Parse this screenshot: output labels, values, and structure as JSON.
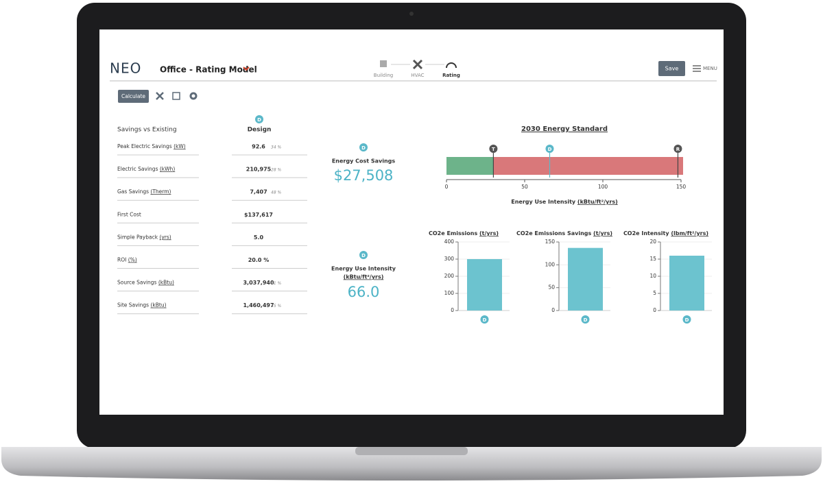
{
  "header": {
    "logo": "NEO",
    "title": "Office - Rating Model",
    "steps": [
      "Building",
      "HVAC",
      "Rating"
    ],
    "save": "Save",
    "menu": "MENU"
  },
  "toolbar": {
    "calculate": "Calculate"
  },
  "savings": {
    "title": "Savings vs Existing",
    "column_badge": "D",
    "column": "Design",
    "rows": [
      {
        "label": "Peak Electric Savings",
        "unit": "(kW)",
        "value": "92.6",
        "pct": "34 %"
      },
      {
        "label": "Electric Savings",
        "unit": "(kWh)",
        "value": "210,975",
        "pct": "28 %"
      },
      {
        "label": "Gas Savings",
        "unit": "(Therm)",
        "value": "7,407",
        "pct": "48 %"
      },
      {
        "label": "First Cost",
        "value": "$137,617"
      },
      {
        "label": "Simple Payback",
        "unit": "(yrs)",
        "value": "5.0"
      },
      {
        "label": "ROI",
        "unit": "(%)",
        "value": "20.0 %"
      },
      {
        "label": "Source Savings",
        "unit": "(kBtu)",
        "value": "3,037,940",
        "pct": "31 %"
      },
      {
        "label": "Site Savings",
        "unit": "(kBtu)",
        "value": "1,460,497",
        "pct": "35 %"
      }
    ]
  },
  "cost": {
    "badge": "D",
    "label": "Energy Cost Savings",
    "value": "$27,508"
  },
  "eui": {
    "badge": "D",
    "label": "Energy Use Intensity",
    "unit": "(kBtu/ft²/yrs)",
    "value": "66.0"
  },
  "standard": {
    "title": "2030 Energy Standard",
    "xlim": [
      0,
      150
    ],
    "xticks": [
      0,
      50,
      100,
      150
    ],
    "markers": [
      {
        "label": "T",
        "value": 30
      },
      {
        "label": "D",
        "value": 66
      },
      {
        "label": "R",
        "value": 148
      }
    ],
    "axis_label": "Energy Use Intensity",
    "axis_unit": "(kBtu/ft²/yrs)"
  },
  "charts": [
    {
      "type": "bar",
      "title": "CO2e Emissions",
      "unit": "(t/yrs)",
      "ylim": [
        0,
        400
      ],
      "yticks": [
        0,
        100,
        200,
        300,
        400
      ],
      "categories": [
        "D"
      ],
      "values": [
        300
      ],
      "color": "#6cc3cf"
    },
    {
      "type": "bar",
      "title": "CO2e Emissions Savings",
      "unit": "(t/yrs)",
      "ylim": [
        0,
        150
      ],
      "yticks": [
        0,
        50,
        100,
        150
      ],
      "categories": [
        "D"
      ],
      "values": [
        137
      ],
      "color": "#6cc3cf"
    },
    {
      "type": "bar",
      "title": "CO2e Intensity",
      "unit": "(lbm/ft²/yrs)",
      "ylim": [
        0,
        20
      ],
      "yticks": [
        0,
        5,
        10,
        15,
        20
      ],
      "categories": [
        "D"
      ],
      "values": [
        16
      ],
      "color": "#6cc3cf"
    }
  ]
}
